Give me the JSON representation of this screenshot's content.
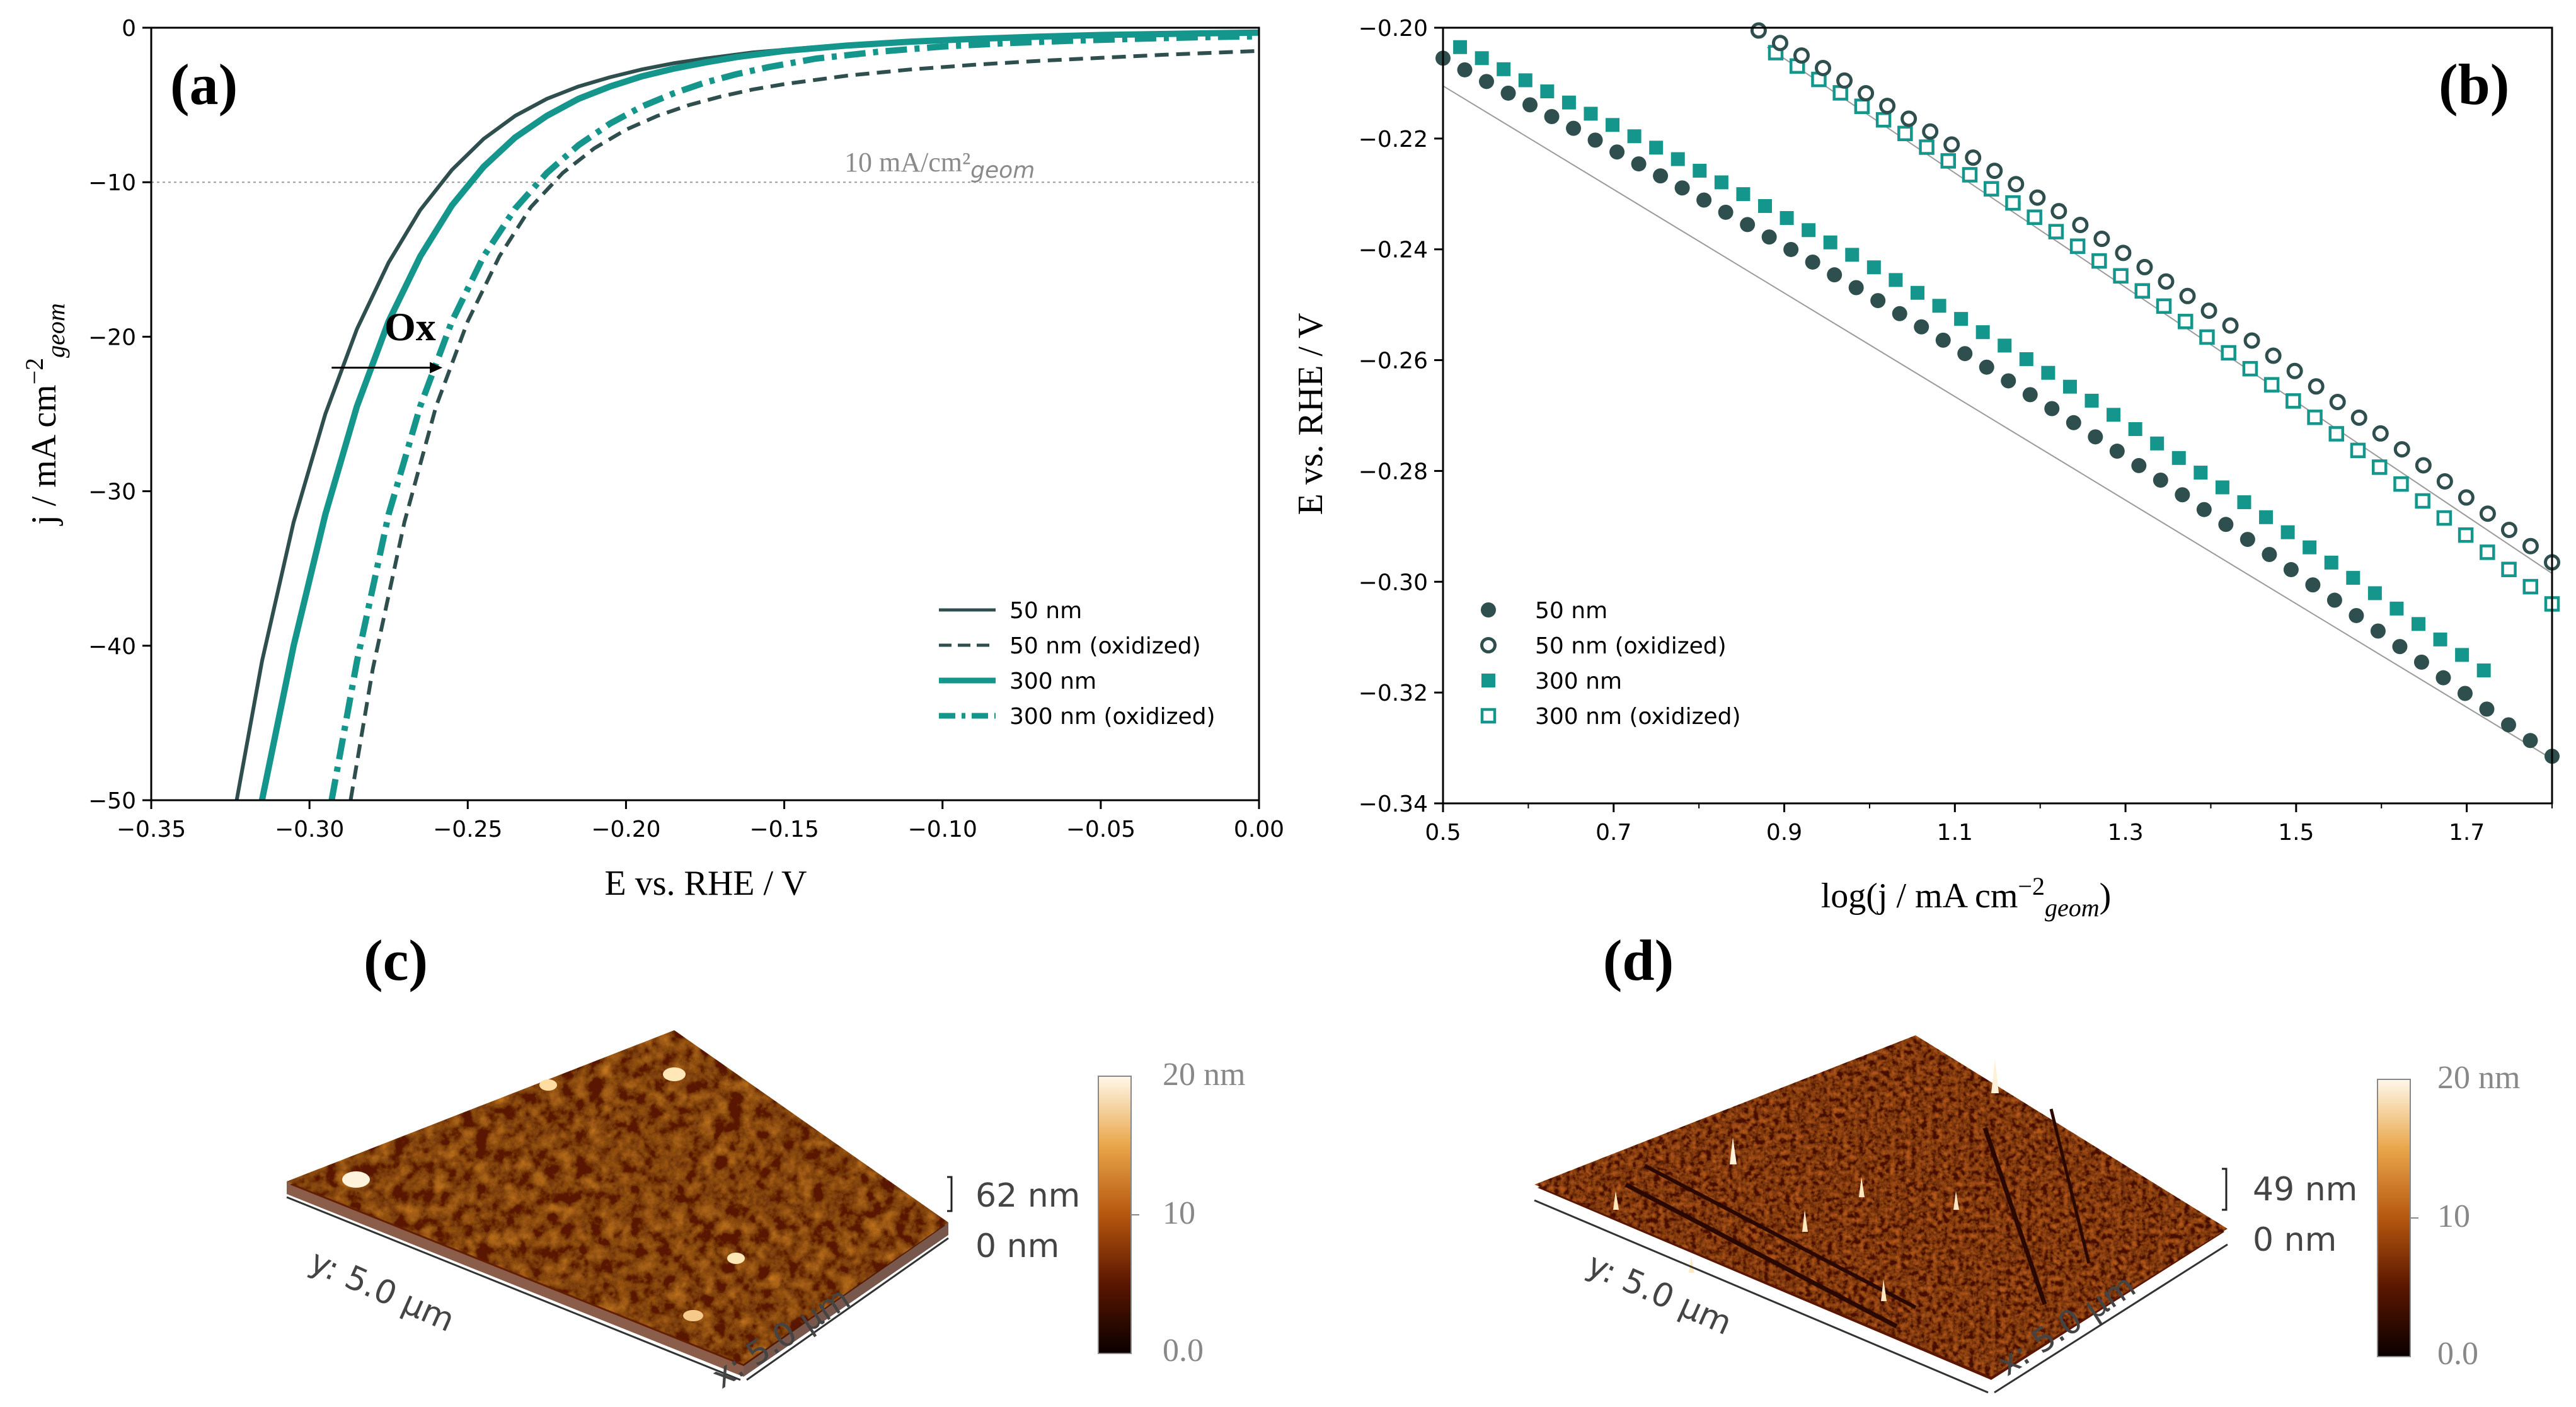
{
  "colors": {
    "dark": "#2f4f4f",
    "teal": "#14968c",
    "ref_line": "#999999",
    "panel_label": "#111111"
  },
  "chart_data": [
    {
      "id": "a",
      "panel_label": "(a)",
      "type": "line",
      "xlabel": "E vs. RHE / V",
      "ylabel_main": "j / mA cm",
      "ylabel_sup": "−2",
      "ylabel_sub": "geom",
      "xlim": [
        -0.35,
        0.0
      ],
      "ylim": [
        -50,
        0
      ],
      "xticks": [
        -0.35,
        -0.3,
        -0.25,
        -0.2,
        -0.15,
        -0.1,
        -0.05,
        0.0
      ],
      "xtick_labels": [
        "−0.35",
        "−0.30",
        "−0.25",
        "−0.20",
        "−0.15",
        "−0.10",
        "−0.05",
        "0.00"
      ],
      "yticks": [
        0,
        -10,
        -20,
        -30,
        -40,
        -50
      ],
      "ytick_labels": [
        "0",
        "−10",
        "−20",
        "−30",
        "−40",
        "−50"
      ],
      "reference_line": {
        "y": -10,
        "label": "10 mA/cm²",
        "label_sub": "geom"
      },
      "annotation": {
        "text": "Ox",
        "from_x": -0.293,
        "to_x": -0.258,
        "y": -22
      },
      "series": [
        {
          "name": "50 nm",
          "color": "dark",
          "style": "solid",
          "x": [
            -0.323,
            -0.315,
            -0.305,
            -0.295,
            -0.285,
            -0.275,
            -0.265,
            -0.255,
            -0.245,
            -0.235,
            -0.225,
            -0.215,
            -0.205,
            -0.195,
            -0.185,
            -0.175,
            -0.16,
            -0.14,
            -0.12,
            -0.1,
            -0.08,
            -0.05,
            -0.02,
            0.0
          ],
          "y": [
            -50,
            -41,
            -32,
            -25,
            -19.5,
            -15.2,
            -11.8,
            -9.2,
            -7.2,
            -5.7,
            -4.6,
            -3.8,
            -3.2,
            -2.7,
            -2.3,
            -2.0,
            -1.6,
            -1.25,
            -1.0,
            -0.8,
            -0.65,
            -0.5,
            -0.4,
            -0.35
          ]
        },
        {
          "name": "50 nm (oxidized)",
          "color": "dark",
          "style": "dashed",
          "x": [
            -0.287,
            -0.28,
            -0.27,
            -0.26,
            -0.25,
            -0.24,
            -0.23,
            -0.22,
            -0.21,
            -0.2,
            -0.19,
            -0.18,
            -0.17,
            -0.16,
            -0.15,
            -0.13,
            -0.11,
            -0.09,
            -0.07,
            -0.05,
            -0.03,
            0.0
          ],
          "y": [
            -50,
            -41.5,
            -32,
            -24.5,
            -19,
            -14.8,
            -11.6,
            -9.4,
            -7.8,
            -6.6,
            -5.7,
            -5.0,
            -4.45,
            -4.0,
            -3.65,
            -3.1,
            -2.7,
            -2.4,
            -2.15,
            -1.95,
            -1.75,
            -1.5
          ]
        },
        {
          "name": "300 nm",
          "color": "teal",
          "style": "solid",
          "x": [
            -0.315,
            -0.305,
            -0.295,
            -0.285,
            -0.275,
            -0.265,
            -0.255,
            -0.245,
            -0.235,
            -0.225,
            -0.215,
            -0.205,
            -0.195,
            -0.185,
            -0.175,
            -0.165,
            -0.15,
            -0.13,
            -0.11,
            -0.09,
            -0.07,
            -0.05,
            -0.02,
            0.0
          ],
          "y": [
            -50,
            -40,
            -31.5,
            -24.5,
            -19,
            -14.8,
            -11.5,
            -9.0,
            -7.1,
            -5.7,
            -4.6,
            -3.8,
            -3.15,
            -2.65,
            -2.25,
            -1.9,
            -1.5,
            -1.15,
            -0.9,
            -0.72,
            -0.58,
            -0.47,
            -0.37,
            -0.32
          ]
        },
        {
          "name": "300 nm (oxidized)",
          "color": "teal",
          "style": "dashdot",
          "x": [
            -0.293,
            -0.285,
            -0.275,
            -0.265,
            -0.255,
            -0.245,
            -0.235,
            -0.225,
            -0.215,
            -0.205,
            -0.195,
            -0.185,
            -0.175,
            -0.165,
            -0.155,
            -0.14,
            -0.12,
            -0.1,
            -0.08,
            -0.06,
            -0.04,
            -0.02,
            0.0
          ],
          "y": [
            -50,
            -41,
            -31.5,
            -24.5,
            -19,
            -14.8,
            -11.7,
            -9.4,
            -7.6,
            -6.2,
            -5.1,
            -4.25,
            -3.55,
            -3.0,
            -2.55,
            -2.0,
            -1.55,
            -1.22,
            -1.0,
            -0.85,
            -0.72,
            -0.62,
            -0.55
          ]
        }
      ],
      "legend_position": "bottom-right"
    },
    {
      "id": "b",
      "panel_label": "(b)",
      "type": "scatter",
      "xlabel_main": "log(j / mA cm",
      "xlabel_sup": "−2",
      "xlabel_sub": "geom",
      "xlabel_end": ")",
      "ylabel": "E vs. RHE / V",
      "xlim": [
        0.5,
        1.8
      ],
      "ylim": [
        -0.34,
        -0.2
      ],
      "xticks": [
        0.5,
        0.7,
        0.9,
        1.1,
        1.3,
        1.5,
        1.7
      ],
      "xtick_labels": [
        "0.5",
        "0.7",
        "0.9",
        "1.1",
        "1.3",
        "1.5",
        "1.7"
      ],
      "yticks": [
        -0.2,
        -0.22,
        -0.24,
        -0.26,
        -0.28,
        -0.3,
        -0.32,
        -0.34
      ],
      "ytick_labels": [
        "−0.20",
        "−0.22",
        "−0.24",
        "−0.26",
        "−0.28",
        "−0.30",
        "−0.32",
        "−0.34"
      ],
      "series": [
        {
          "name": "50 nm",
          "color": "dark",
          "marker": "filled-circle",
          "x_start": 0.5,
          "x_end": 1.8,
          "y_start": -0.2055,
          "y_end": -0.3315,
          "n": 52
        },
        {
          "name": "50 nm (oxidized)",
          "color": "dark",
          "marker": "open-circle",
          "x_start": 0.87,
          "x_end": 1.8,
          "y_start": -0.2005,
          "y_end": -0.2965,
          "n": 38
        },
        {
          "name": "300 nm",
          "color": "teal",
          "marker": "filled-square",
          "x_start": 0.52,
          "x_end": 1.72,
          "y_start": -0.2035,
          "y_end": -0.316,
          "n": 48
        },
        {
          "name": "300 nm (oxidized)",
          "color": "teal",
          "marker": "open-square",
          "x_start": 0.89,
          "x_end": 1.8,
          "y_start": -0.2045,
          "y_end": -0.304,
          "n": 37
        }
      ],
      "fit_lines": [
        {
          "x1": 0.5,
          "y1": -0.2105,
          "x2": 1.8,
          "y2": -0.332
        },
        {
          "x1": 0.88,
          "y1": -0.2035,
          "x2": 1.8,
          "y2": -0.2985
        }
      ],
      "legend_position": "bottom-left"
    }
  ],
  "afm_panels": [
    {
      "panel_label": "(c)",
      "z_range": "62 nm",
      "z_zero": "0 nm",
      "y_axis": "y: 5.0 µm",
      "x_axis": "x: 5.0 µm",
      "colorbar_max": "20 nm",
      "colorbar_mid": "10",
      "colorbar_min": "0.0"
    },
    {
      "panel_label": "(d)",
      "z_range": "49 nm",
      "z_zero": "0 nm",
      "y_axis": "y: 5.0 µm",
      "x_axis": "x: 5.0 µm",
      "colorbar_max": "20 nm",
      "colorbar_mid": "10",
      "colorbar_min": "0.0"
    }
  ]
}
